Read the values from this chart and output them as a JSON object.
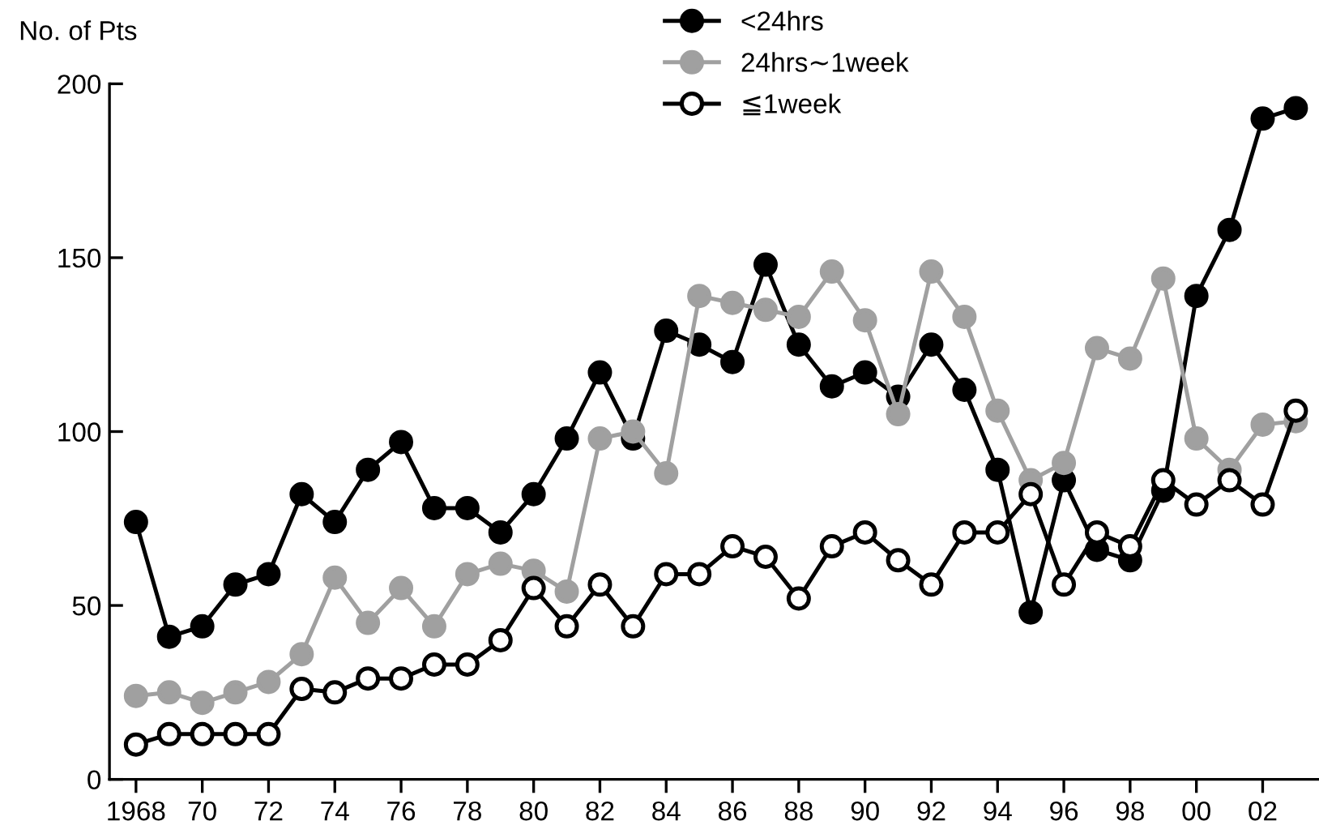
{
  "chart_data": {
    "type": "line",
    "ylabel": "No. of Pts",
    "x": [
      1968,
      1969,
      1970,
      1971,
      1972,
      1973,
      1974,
      1975,
      1976,
      1977,
      1978,
      1979,
      1980,
      1981,
      1982,
      1983,
      1984,
      1985,
      1986,
      1987,
      1988,
      1989,
      1990,
      1991,
      1992,
      1993,
      1994,
      1995,
      1996,
      1997,
      1998,
      1999,
      2000,
      2001,
      2002,
      2003
    ],
    "series": [
      {
        "name": "<24hrs",
        "color": "#000000",
        "values": [
          74,
          41,
          44,
          56,
          59,
          82,
          74,
          89,
          97,
          78,
          78,
          71,
          82,
          98,
          117,
          98,
          129,
          125,
          120,
          148,
          125,
          113,
          117,
          110,
          125,
          112,
          89,
          48,
          86,
          66,
          63,
          83,
          139,
          158,
          190,
          193
        ]
      },
      {
        "name": "24hrs∼1week",
        "color": "#a0a0a0",
        "values": [
          24,
          25,
          22,
          25,
          28,
          36,
          58,
          45,
          55,
          44,
          59,
          62,
          60,
          54,
          98,
          100,
          88,
          139,
          137,
          135,
          133,
          146,
          132,
          105,
          146,
          133,
          106,
          86,
          91,
          124,
          121,
          144,
          98,
          89,
          102,
          103
        ]
      },
      {
        "name": "≦1week",
        "color": "#000000",
        "values": [
          10,
          13,
          13,
          13,
          13,
          26,
          25,
          29,
          29,
          33,
          33,
          40,
          55,
          44,
          56,
          44,
          59,
          59,
          67,
          64,
          52,
          67,
          71,
          63,
          56,
          71,
          71,
          82,
          56,
          71,
          67,
          86,
          79,
          86,
          79,
          106
        ]
      }
    ],
    "xlim": [
      1967.2,
      2003.7
    ],
    "ylim": [
      0,
      200
    ],
    "yticks": [
      0,
      50,
      100,
      150,
      200
    ],
    "xticks": [
      1968,
      {
        "value": 1970,
        "label": "70"
      },
      {
        "value": 1972,
        "label": "72"
      },
      {
        "value": 1974,
        "label": "74"
      },
      {
        "value": 1976,
        "label": "76"
      },
      {
        "value": 1978,
        "label": "78"
      },
      {
        "value": 1980,
        "label": "80"
      },
      {
        "value": 1982,
        "label": "82"
      },
      {
        "value": 1984,
        "label": "84"
      },
      {
        "value": 1986,
        "label": "86"
      },
      {
        "value": 1988,
        "label": "88"
      },
      {
        "value": 1990,
        "label": "90"
      },
      {
        "value": 1992,
        "label": "92"
      },
      {
        "value": 1994,
        "label": "94"
      },
      {
        "value": 1996,
        "label": "96"
      },
      {
        "value": 1998,
        "label": "98"
      },
      {
        "value": 2000,
        "label": "00"
      },
      {
        "value": 2002,
        "label": "02"
      }
    ],
    "grid": false,
    "legend": "top",
    "marker": "circle",
    "line_style": "solid"
  }
}
